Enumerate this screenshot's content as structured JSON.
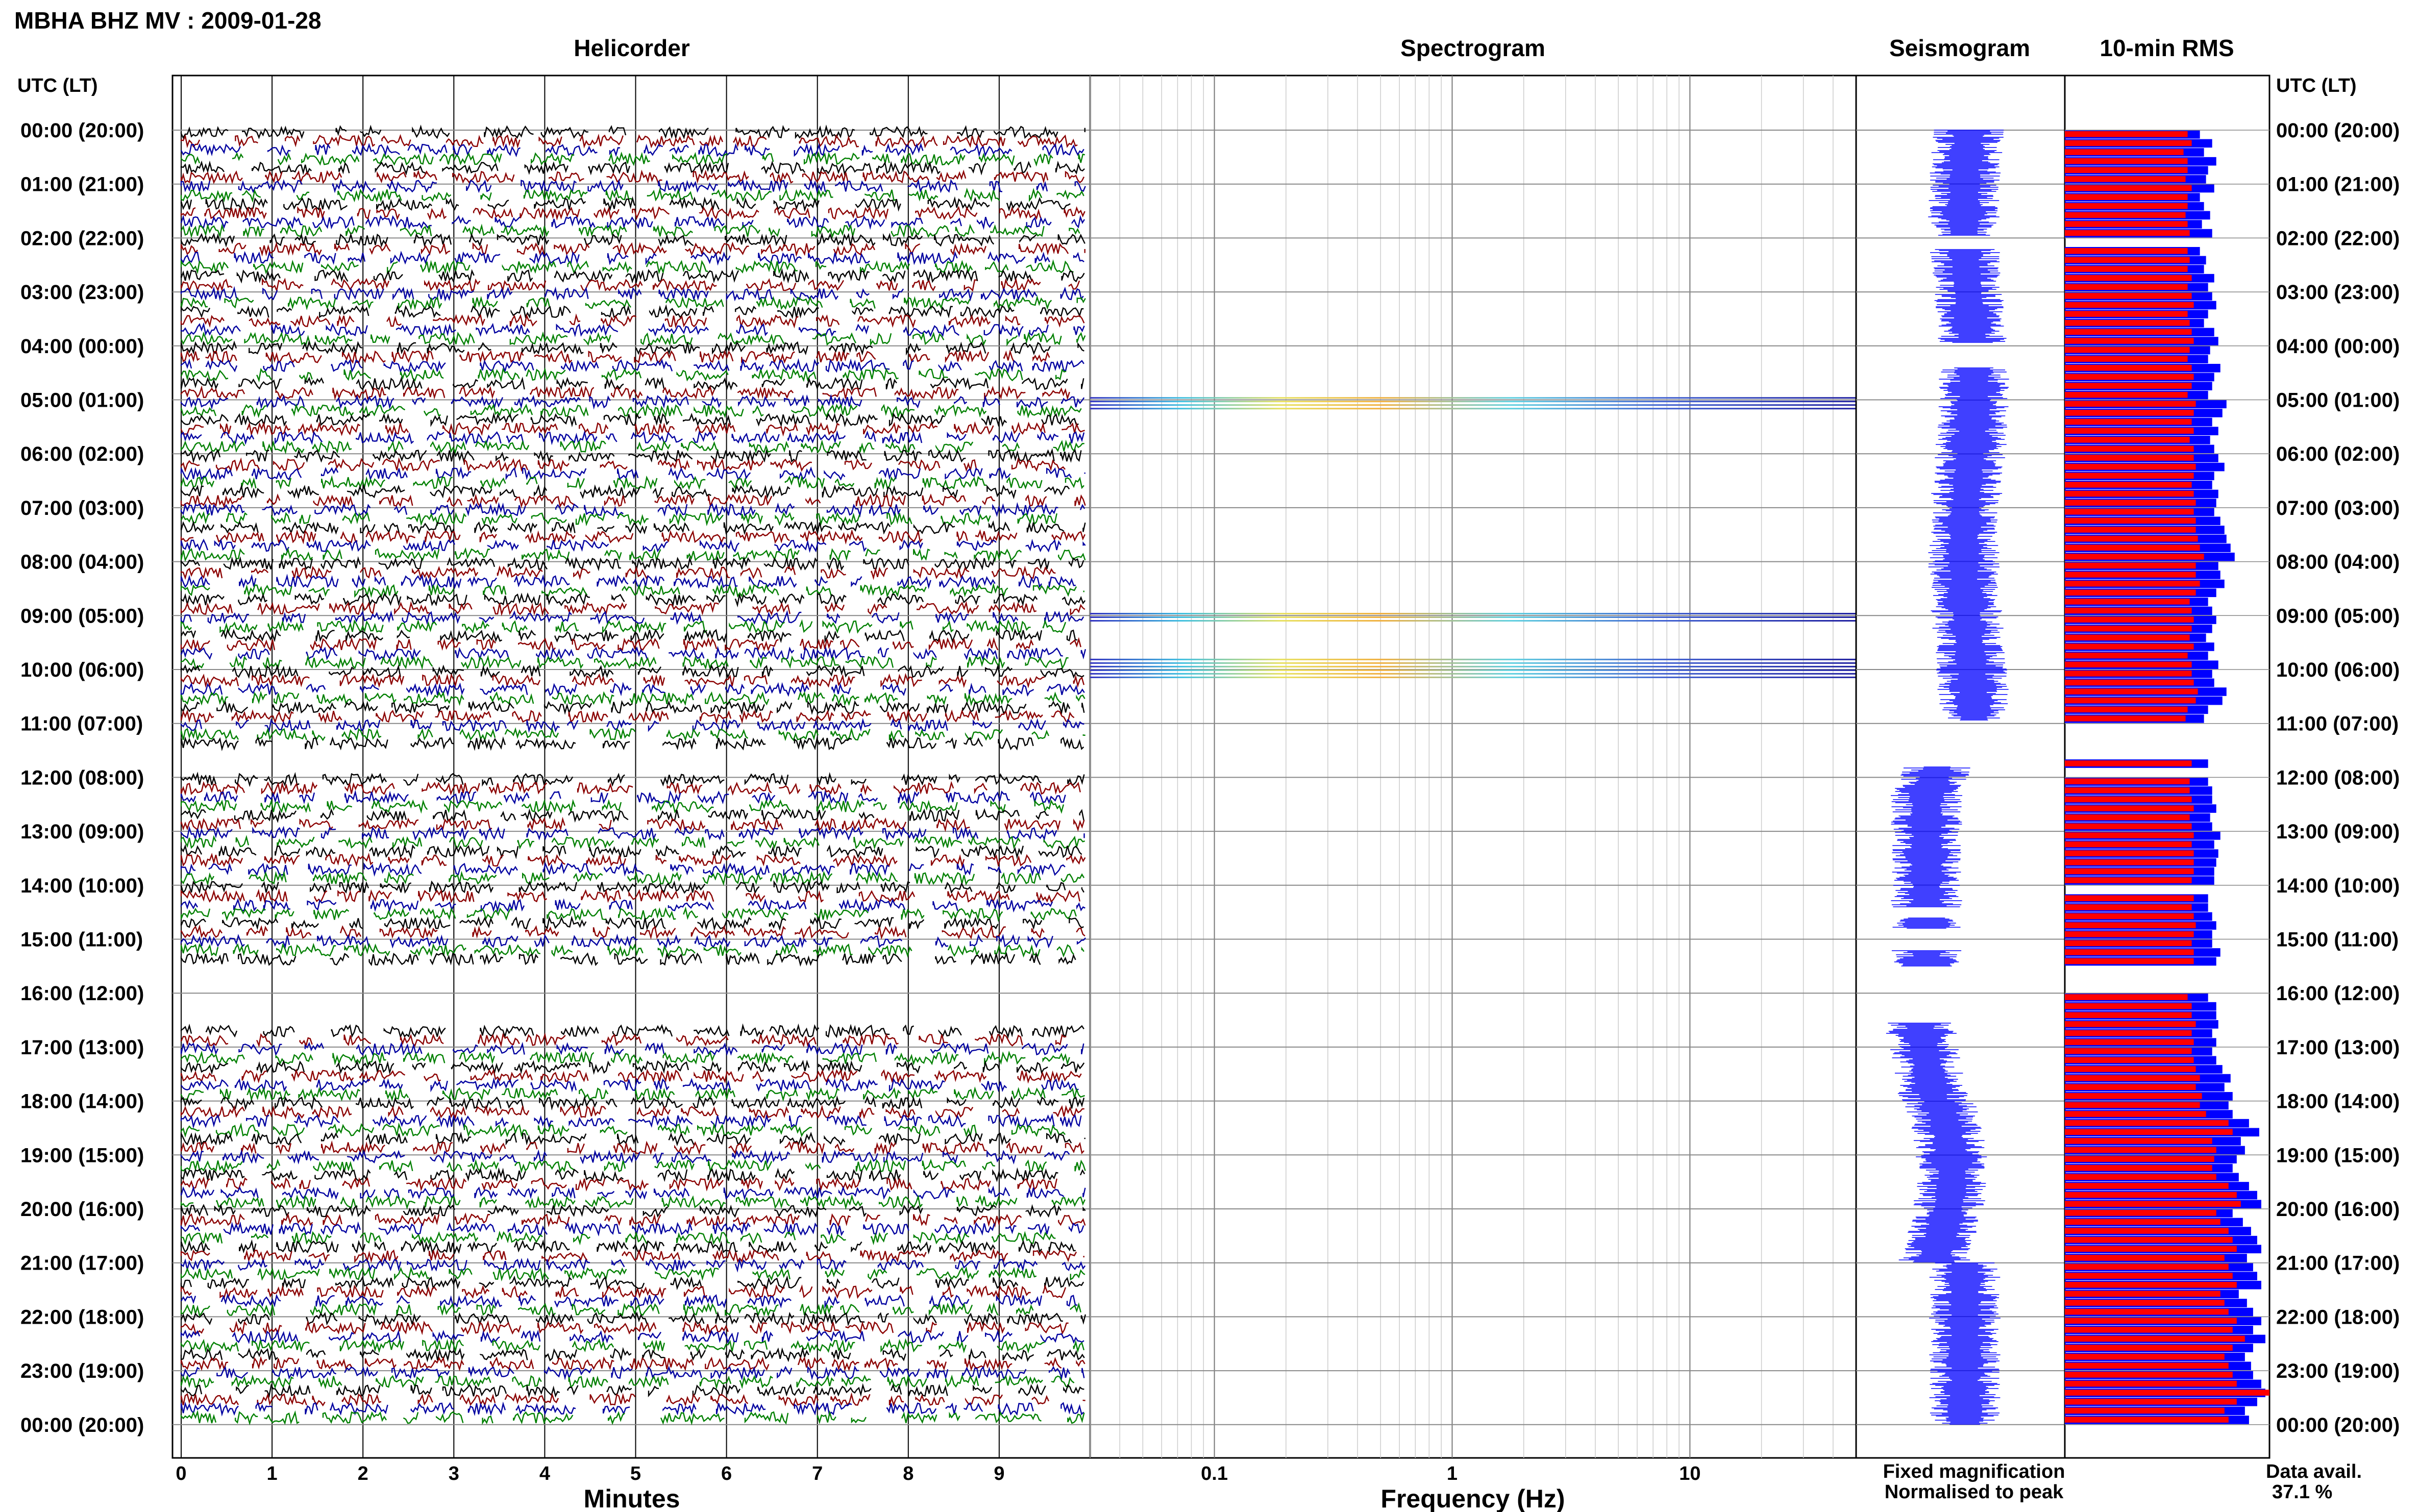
{
  "header": {
    "title": "MBHA BHZ MV : 2009-01-28"
  },
  "panels": {
    "helicorder": "Helicorder",
    "spectrogram": "Spectrogram",
    "seismogram": "Seismogram",
    "rms": "10-min RMS"
  },
  "time_axis": {
    "label_left": "UTC (LT)",
    "label_right": "UTC (LT)",
    "ticks": [
      "00:00 (20:00)",
      "01:00 (21:00)",
      "02:00 (22:00)",
      "03:00 (23:00)",
      "04:00 (00:00)",
      "05:00 (01:00)",
      "06:00 (02:00)",
      "07:00 (03:00)",
      "08:00 (04:00)",
      "09:00 (05:00)",
      "10:00 (06:00)",
      "11:00 (07:00)",
      "12:00 (08:00)",
      "13:00 (09:00)",
      "14:00 (10:00)",
      "15:00 (11:00)",
      "16:00 (12:00)",
      "17:00 (13:00)",
      "18:00 (14:00)",
      "19:00 (15:00)",
      "20:00 (16:00)",
      "21:00 (17:00)",
      "22:00 (18:00)",
      "23:00 (19:00)",
      "00:00 (20:00)"
    ]
  },
  "footer": {
    "minutes_label": "Minutes",
    "frequency_label": "Frequency (Hz)",
    "legend_fixed": "Fixed magnification",
    "legend_normalised": "Normalised to peak",
    "data_avail_label": "Data avail.",
    "data_avail_value": "37.1 %"
  },
  "colors": {
    "helicorder_traces": [
      "#000000",
      "#8b0000",
      "#0000a0",
      "#008000"
    ],
    "seismogram": "#0000ff",
    "rms_fixed": "#0000ff",
    "rms_normalised": "#ff0000",
    "legend_fixed": "#0000ff",
    "legend_normalised": "#ff0000"
  },
  "chart_data": [
    {
      "type": "line",
      "name": "helicorder",
      "xlabel": "Minutes",
      "xlim": [
        0,
        10
      ],
      "x_ticks": [
        "0",
        "1",
        "2",
        "3",
        "4",
        "5",
        "6",
        "7",
        "8",
        "9"
      ],
      "ylim_hours": [
        0,
        24
      ],
      "traces_per_hour": 6,
      "gaps_hours": [
        [
          11.5,
          12.0
        ],
        [
          15.5,
          16.6
        ]
      ]
    },
    {
      "type": "heatmap",
      "name": "spectrogram",
      "xlabel": "Frequency (Hz)",
      "x_scale": "log",
      "xlim": [
        0.03,
        50
      ],
      "x_ticks": [
        "0.1",
        "1",
        "10"
      ],
      "active_bands_hours": [
        [
          4.95,
          5.2
        ],
        [
          8.95,
          9.1
        ],
        [
          9.8,
          10.15
        ]
      ]
    },
    {
      "type": "line",
      "name": "seismogram",
      "gaps_hours": [
        [
          1.95,
          2.2
        ],
        [
          3.95,
          4.4
        ],
        [
          10.95,
          11.8
        ],
        [
          14.4,
          14.6
        ],
        [
          14.8,
          15.2
        ],
        [
          15.5,
          16.55
        ]
      ]
    },
    {
      "type": "bar",
      "name": "10-min RMS",
      "orientation": "horizontal",
      "series": [
        {
          "name": "Fixed magnification",
          "values_pct": [
            66,
            72,
            68,
            74,
            70,
            69,
            73,
            66,
            68,
            71,
            67,
            72,
            0,
            66,
            69,
            68,
            73,
            70,
            72,
            74,
            70,
            68,
            73,
            75,
            71,
            70,
            76,
            73,
            72,
            70,
            79,
            77,
            72,
            75,
            71,
            73,
            75,
            78,
            73,
            72,
            75,
            74,
            73,
            76,
            78,
            79,
            81,
            83,
            75,
            76,
            78,
            74,
            70,
            72,
            74,
            72,
            69,
            73,
            70,
            75,
            72,
            73,
            79,
            77,
            70,
            68,
            0,
            0,
            0,
            0,
            70,
            0,
            70,
            72,
            72,
            74,
            71,
            72,
            76,
            73,
            75,
            74,
            73,
            73,
            0,
            70,
            70,
            72,
            74,
            72,
            72,
            76,
            74,
            0,
            0,
            0,
            70,
            74,
            74,
            75,
            72,
            74,
            72,
            74,
            77,
            81,
            78,
            82,
            80,
            82,
            90,
            95,
            86,
            88,
            84,
            82,
            85,
            90,
            94,
            96,
            82,
            87,
            91,
            94,
            96,
            89,
            92,
            94,
            96,
            85,
            89,
            92,
            96,
            92,
            98,
            92,
            88,
            91,
            92,
            96,
            98,
            94,
            88,
            90
          ]
        },
        {
          "name": "Normalised to peak",
          "values_pct": [
            60,
            62,
            58,
            60,
            60,
            59,
            62,
            60,
            60,
            59,
            60,
            61,
            0,
            60,
            61,
            60,
            62,
            60,
            62,
            63,
            60,
            61,
            62,
            63,
            61,
            60,
            62,
            63,
            62,
            60,
            64,
            63,
            62,
            63,
            61,
            63,
            63,
            64,
            63,
            62,
            63,
            64,
            63,
            64,
            64,
            65,
            66,
            68,
            64,
            64,
            66,
            64,
            61,
            62,
            63,
            62,
            61,
            63,
            60,
            62,
            62,
            63,
            65,
            64,
            60,
            59,
            0,
            0,
            0,
            0,
            62,
            0,
            61,
            61,
            62,
            63,
            61,
            62,
            63,
            62,
            63,
            63,
            63,
            62,
            0,
            63,
            62,
            63,
            64,
            63,
            62,
            63,
            63,
            0,
            0,
            0,
            60,
            62,
            62,
            64,
            62,
            63,
            62,
            63,
            64,
            66,
            64,
            67,
            66,
            69,
            80,
            82,
            72,
            74,
            73,
            72,
            74,
            80,
            84,
            86,
            74,
            76,
            80,
            82,
            84,
            78,
            80,
            82,
            84,
            76,
            78,
            80,
            84,
            82,
            88,
            82,
            78,
            80,
            82,
            84,
            100,
            84,
            78,
            80
          ]
        }
      ],
      "xlim": [
        0,
        100
      ]
    }
  ]
}
